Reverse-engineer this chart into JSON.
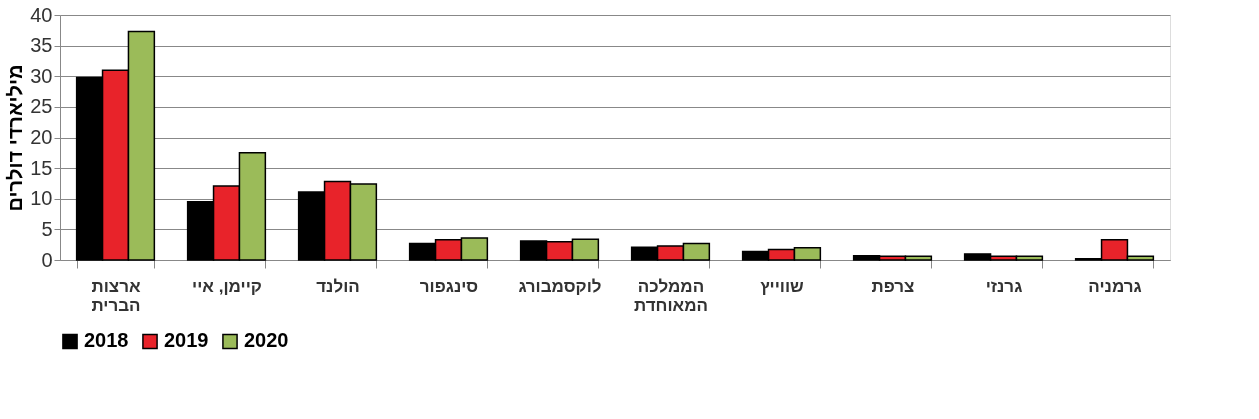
{
  "chart_data": {
    "type": "bar",
    "ylabel": "מיליארדי דולרים",
    "categories": [
      "ארצות\nהברית",
      "קיימן, איי",
      "הולנד",
      "סינגפור",
      "לוקסמבורג",
      "הממלכה\nהמאוחדת",
      "שווייץ",
      "צרפת",
      "גרנזי",
      "גרמניה"
    ],
    "series": [
      {
        "name": "2018",
        "color": "#000000",
        "values": [
          29.8,
          9.5,
          11.1,
          2.7,
          3.1,
          2.1,
          1.4,
          0.7,
          1.0,
          0.2
        ]
      },
      {
        "name": "2019",
        "color": "#e8232a",
        "values": [
          31.0,
          12.1,
          12.8,
          3.3,
          3.0,
          2.3,
          1.7,
          0.6,
          0.6,
          3.3
        ]
      },
      {
        "name": "2020",
        "color": "#9bbb59",
        "values": [
          37.3,
          17.5,
          12.4,
          3.6,
          3.4,
          2.7,
          2.0,
          0.6,
          0.6,
          0.6
        ]
      }
    ],
    "ylim": [
      0,
      40
    ],
    "yticks": [
      0,
      5,
      10,
      15,
      20,
      25,
      30,
      35,
      40
    ],
    "grid": "y",
    "legend": "bottom"
  }
}
